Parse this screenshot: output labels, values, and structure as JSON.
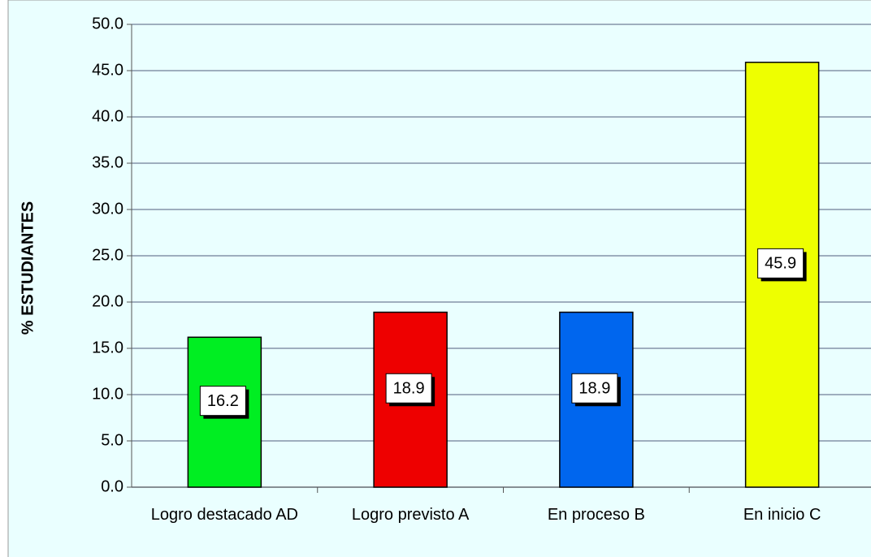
{
  "chart_data": {
    "type": "bar",
    "y_label": "% ESTUDIANTES",
    "categories": [
      "Logro destacado AD",
      "Logro previsto A",
      "En proceso B",
      "En inicio C"
    ],
    "values": [
      16.2,
      18.9,
      18.9,
      45.9
    ],
    "colors": [
      "#00ee22",
      "#ee0000",
      "#0066ee",
      "#eeff00"
    ],
    "ylim": [
      0,
      50
    ],
    "yticks": [
      {
        "value": 0,
        "label": "0.0"
      },
      {
        "value": 5,
        "label": "5.0"
      },
      {
        "value": 10,
        "label": "10.0"
      },
      {
        "value": 15,
        "label": "15.0"
      },
      {
        "value": 20,
        "label": "20.0"
      },
      {
        "value": 25,
        "label": "25.0"
      },
      {
        "value": 30,
        "label": "30.0"
      },
      {
        "value": 35,
        "label": "35.0"
      },
      {
        "value": 40,
        "label": "40.0"
      },
      {
        "value": 45,
        "label": "45.0"
      },
      {
        "value": 50,
        "label": "50.0"
      }
    ],
    "grid": true
  }
}
